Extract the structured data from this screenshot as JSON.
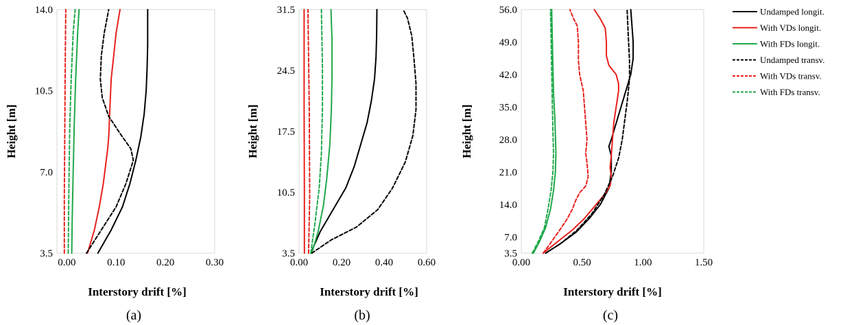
{
  "chart_data": [
    {
      "type": "line",
      "caption": "(a)",
      "xlabel": "Interstory drift [%]",
      "ylabel": "Height [m]",
      "xlim": [
        -0.02,
        0.3
      ],
      "ylim": [
        3.5,
        14.0
      ],
      "xticks": [
        "0.00",
        "0.10",
        "0.20",
        "0.30"
      ],
      "yticks": [
        "3.5",
        "7.0",
        "10.5",
        "14.0"
      ],
      "series": [
        {
          "name": "Undamped longit.",
          "points": [
            [
              0.063,
              3.5
            ],
            [
              0.09,
              4.5
            ],
            [
              0.113,
              5.5
            ],
            [
              0.128,
              6.5
            ],
            [
              0.14,
              7.5
            ],
            [
              0.15,
              8.5
            ],
            [
              0.157,
              9.5
            ],
            [
              0.161,
              10.5
            ],
            [
              0.163,
              11.5
            ],
            [
              0.164,
              12.5
            ],
            [
              0.164,
              13.5
            ],
            [
              0.164,
              14.0
            ]
          ]
        },
        {
          "name": "With VDs longit.",
          "points": [
            [
              0.042,
              3.5
            ],
            [
              0.056,
              4.5
            ],
            [
              0.066,
              5.5
            ],
            [
              0.074,
              6.5
            ],
            [
              0.08,
              7.5
            ],
            [
              0.083,
              8.0
            ],
            [
              0.085,
              8.5
            ],
            [
              0.086,
              9.0
            ],
            [
              0.088,
              10.0
            ],
            [
              0.09,
              11.0
            ],
            [
              0.095,
              12.0
            ],
            [
              0.1,
              13.0
            ],
            [
              0.108,
              14.0
            ]
          ]
        },
        {
          "name": "With FDs longit.",
          "points": [
            [
              0.01,
              3.5
            ],
            [
              0.011,
              5.0
            ],
            [
              0.013,
              7.0
            ],
            [
              0.015,
              9.0
            ],
            [
              0.018,
              11.0
            ],
            [
              0.022,
              13.0
            ],
            [
              0.025,
              14.0
            ]
          ]
        },
        {
          "name": "Undamped transv.",
          "points": [
            [
              0.04,
              3.5
            ],
            [
              0.07,
              4.5
            ],
            [
              0.1,
              5.5
            ],
            [
              0.12,
              6.5
            ],
            [
              0.135,
              7.5
            ],
            [
              0.13,
              8.0
            ],
            [
              0.11,
              8.6
            ],
            [
              0.085,
              9.4
            ],
            [
              0.072,
              10.2
            ],
            [
              0.068,
              11.0
            ],
            [
              0.07,
              12.0
            ],
            [
              0.076,
              13.0
            ],
            [
              0.085,
              14.0
            ]
          ]
        },
        {
          "name": "With VDs transv.",
          "points": [
            [
              -0.005,
              3.5
            ],
            [
              -0.005,
              6.0
            ],
            [
              -0.004,
              9.0
            ],
            [
              -0.003,
              12.0
            ],
            [
              -0.002,
              14.0
            ]
          ]
        },
        {
          "name": "With FDs transv.",
          "points": [
            [
              0.003,
              3.5
            ],
            [
              0.004,
              6.0
            ],
            [
              0.006,
              9.0
            ],
            [
              0.009,
              11.0
            ],
            [
              0.013,
              13.0
            ],
            [
              0.017,
              14.0
            ]
          ]
        }
      ]
    },
    {
      "type": "line",
      "caption": "(b)",
      "xlabel": "Interstory drift [%]",
      "ylabel": "Height [m]",
      "xlim": [
        0.0,
        0.6
      ],
      "ylim": [
        3.5,
        31.5
      ],
      "xticks": [
        "0.00",
        "0.20",
        "0.40",
        "0.60"
      ],
      "yticks": [
        "3.5",
        "10.5",
        "17.5",
        "24.5",
        "31.5"
      ],
      "series": [
        {
          "name": "Undamped longit.",
          "points": [
            [
              0.055,
              3.5
            ],
            [
              0.1,
              6.0
            ],
            [
              0.16,
              8.5
            ],
            [
              0.22,
              11.0
            ],
            [
              0.26,
              13.5
            ],
            [
              0.29,
              16.0
            ],
            [
              0.32,
              18.5
            ],
            [
              0.34,
              21.0
            ],
            [
              0.355,
              23.5
            ],
            [
              0.362,
              26.0
            ],
            [
              0.365,
              28.5
            ],
            [
              0.366,
              31.5
            ]
          ]
        },
        {
          "name": "With VDs longit.",
          "points": [
            [
              0.025,
              3.5
            ],
            [
              0.025,
              10.0
            ],
            [
              0.024,
              20.0
            ],
            [
              0.024,
              31.5
            ]
          ]
        },
        {
          "name": "With FDs longit.",
          "points": [
            [
              0.06,
              3.5
            ],
            [
              0.09,
              6.0
            ],
            [
              0.115,
              9.0
            ],
            [
              0.13,
              12.0
            ],
            [
              0.145,
              16.0
            ],
            [
              0.152,
              20.0
            ],
            [
              0.155,
              24.0
            ],
            [
              0.155,
              28.0
            ],
            [
              0.15,
              31.5
            ]
          ]
        },
        {
          "name": "Undamped transv.",
          "points": [
            [
              0.06,
              3.5
            ],
            [
              0.15,
              5.0
            ],
            [
              0.27,
              6.5
            ],
            [
              0.37,
              8.5
            ],
            [
              0.44,
              11.0
            ],
            [
              0.5,
              14.0
            ],
            [
              0.535,
              17.0
            ],
            [
              0.55,
              20.0
            ],
            [
              0.55,
              23.0
            ],
            [
              0.54,
              26.0
            ],
            [
              0.53,
              28.5
            ],
            [
              0.51,
              30.5
            ],
            [
              0.49,
              31.5
            ]
          ]
        },
        {
          "name": "With VDs transv.",
          "points": [
            [
              0.045,
              3.5
            ],
            [
              0.05,
              10.0
            ],
            [
              0.048,
              20.0
            ],
            [
              0.042,
              31.5
            ]
          ]
        },
        {
          "name": "With FDs transv.",
          "points": [
            [
              0.055,
              3.5
            ],
            [
              0.075,
              7.0
            ],
            [
              0.095,
              11.0
            ],
            [
              0.105,
              15.0
            ],
            [
              0.11,
              20.0
            ],
            [
              0.11,
              25.0
            ],
            [
              0.105,
              31.5
            ]
          ]
        }
      ]
    },
    {
      "type": "line",
      "caption": "(c)",
      "xlabel": "Interstory drift [%]",
      "ylabel": "Height [m]",
      "xlim": [
        0.0,
        1.5
      ],
      "ylim": [
        3.5,
        56.0
      ],
      "xticks": [
        "0.00",
        "0.50",
        "1.00",
        "1.50"
      ],
      "yticks": [
        "3.5",
        "7.0",
        "14.0",
        "21.0",
        "28.0",
        "35.0",
        "42.0",
        "49.0",
        "56.0"
      ],
      "series": [
        {
          "name": "Undamped longit.",
          "points": [
            [
              0.2,
              3.5
            ],
            [
              0.32,
              5.5
            ],
            [
              0.45,
              8.0
            ],
            [
              0.56,
              11.0
            ],
            [
              0.65,
              14.0
            ],
            [
              0.72,
              17.5
            ],
            [
              0.74,
              21.0
            ],
            [
              0.74,
              24.5
            ],
            [
              0.72,
              26.5
            ],
            [
              0.74,
              28.0
            ],
            [
              0.78,
              31.5
            ],
            [
              0.82,
              35.0
            ],
            [
              0.86,
              38.5
            ],
            [
              0.9,
              42.0
            ],
            [
              0.92,
              45.5
            ],
            [
              0.92,
              49.0
            ],
            [
              0.91,
              52.5
            ],
            [
              0.9,
              56.0
            ]
          ]
        },
        {
          "name": "With VDs longit.",
          "points": [
            [
              0.18,
              3.5
            ],
            [
              0.3,
              6.0
            ],
            [
              0.42,
              8.5
            ],
            [
              0.52,
              11.0
            ],
            [
              0.6,
              13.5
            ],
            [
              0.68,
              16.0
            ],
            [
              0.73,
              18.0
            ],
            [
              0.74,
              20.0
            ],
            [
              0.73,
              22.0
            ],
            [
              0.74,
              24.5
            ],
            [
              0.75,
              28.0
            ],
            [
              0.76,
              31.5
            ],
            [
              0.78,
              35.0
            ],
            [
              0.8,
              38.5
            ],
            [
              0.8,
              40.0
            ],
            [
              0.78,
              42.0
            ],
            [
              0.72,
              44.0
            ],
            [
              0.7,
              46.0
            ],
            [
              0.7,
              49.0
            ],
            [
              0.69,
              52.0
            ],
            [
              0.65,
              54.0
            ],
            [
              0.6,
              56.0
            ]
          ]
        },
        {
          "name": "With FDs longit.",
          "points": [
            [
              0.1,
              3.5
            ],
            [
              0.15,
              6.0
            ],
            [
              0.2,
              9.0
            ],
            [
              0.24,
              13.0
            ],
            [
              0.265,
              17.0
            ],
            [
              0.28,
              21.0
            ],
            [
              0.285,
              25.0
            ],
            [
              0.28,
              29.0
            ],
            [
              0.275,
              33.0
            ],
            [
              0.265,
              38.0
            ],
            [
              0.26,
              44.0
            ],
            [
              0.255,
              50.0
            ],
            [
              0.25,
              56.0
            ]
          ]
        },
        {
          "name": "Undamped transv.",
          "points": [
            [
              0.2,
              3.5
            ],
            [
              0.32,
              5.5
            ],
            [
              0.46,
              8.5
            ],
            [
              0.58,
              12.0
            ],
            [
              0.68,
              16.0
            ],
            [
              0.75,
              20.0
            ],
            [
              0.8,
              24.0
            ],
            [
              0.83,
              28.0
            ],
            [
              0.85,
              32.0
            ],
            [
              0.87,
              36.0
            ],
            [
              0.89,
              41.0
            ],
            [
              0.89,
              45.0
            ],
            [
              0.88,
              50.0
            ],
            [
              0.87,
              56.0
            ]
          ]
        },
        {
          "name": "With VDs transv.",
          "points": [
            [
              0.18,
              3.5
            ],
            [
              0.25,
              6.0
            ],
            [
              0.33,
              9.0
            ],
            [
              0.38,
              11.0
            ],
            [
              0.42,
              13.0
            ],
            [
              0.45,
              15.0
            ],
            [
              0.48,
              16.5
            ],
            [
              0.53,
              18.0
            ],
            [
              0.55,
              20.0
            ],
            [
              0.54,
              23.0
            ],
            [
              0.53,
              25.0
            ],
            [
              0.54,
              28.0
            ],
            [
              0.53,
              31.5
            ],
            [
              0.52,
              35.0
            ],
            [
              0.51,
              38.5
            ],
            [
              0.48,
              42.0
            ],
            [
              0.47,
              45.0
            ],
            [
              0.47,
              49.0
            ],
            [
              0.46,
              52.5
            ],
            [
              0.43,
              54.0
            ],
            [
              0.4,
              56.0
            ]
          ]
        },
        {
          "name": "With FDs transv.",
          "points": [
            [
              0.09,
              3.5
            ],
            [
              0.14,
              6.0
            ],
            [
              0.19,
              9.0
            ],
            [
              0.22,
              13.0
            ],
            [
              0.245,
              17.0
            ],
            [
              0.26,
              21.0
            ],
            [
              0.265,
              25.0
            ],
            [
              0.26,
              30.0
            ],
            [
              0.255,
              36.0
            ],
            [
              0.25,
              43.0
            ],
            [
              0.245,
              50.0
            ],
            [
              0.24,
              56.0
            ]
          ]
        }
      ]
    }
  ],
  "legend": [
    {
      "label": "Undamped longit.",
      "color": "#000000",
      "dashed": false
    },
    {
      "label": "With VDs longit.",
      "color": "#e8201c",
      "dashed": false
    },
    {
      "label": "With FDs longit.",
      "color": "#1fa84a",
      "dashed": false
    },
    {
      "label": "Undamped transv.",
      "color": "#000000",
      "dashed": true
    },
    {
      "label": "With VDs transv.",
      "color": "#e8201c",
      "dashed": true
    },
    {
      "label": "With FDs transv.",
      "color": "#1fa84a",
      "dashed": true
    }
  ]
}
